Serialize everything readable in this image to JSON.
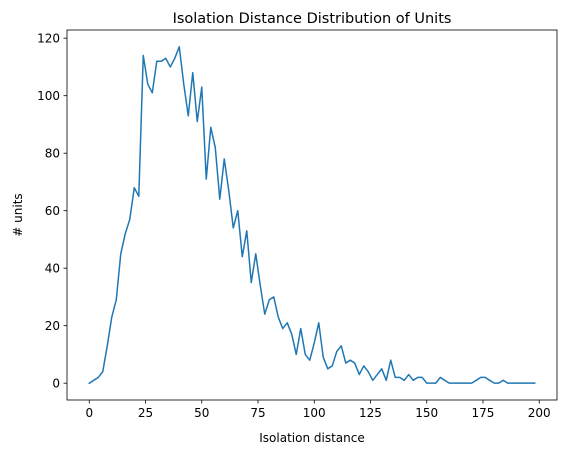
{
  "chart_data": {
    "type": "line",
    "title": "Isolation Distance Distribution of Units",
    "xlabel": "Isolation distance",
    "ylabel": "# units",
    "xlim": [
      -9.9,
      207.9
    ],
    "ylim": [
      -5.85,
      122.85
    ],
    "xticks": [
      0,
      25,
      50,
      75,
      100,
      125,
      150,
      175,
      200
    ],
    "yticks": [
      0,
      20,
      40,
      60,
      80,
      100,
      120
    ],
    "grid": false,
    "legend": "none",
    "line_color": "#1f77b4",
    "series": [
      {
        "x": [
          0,
          2,
          4,
          6,
          8,
          10,
          12,
          14,
          16,
          18,
          20,
          22,
          24,
          26,
          28,
          30,
          32,
          34,
          36,
          38,
          40,
          42,
          44,
          46,
          48,
          50,
          52,
          54,
          56,
          58,
          60,
          62,
          64,
          66,
          68,
          70,
          72,
          74,
          76,
          78,
          80,
          82,
          84,
          86,
          88,
          90,
          92,
          94,
          96,
          98,
          100,
          102,
          104,
          106,
          108,
          110,
          112,
          114,
          116,
          118,
          120,
          122,
          124,
          126,
          128,
          130,
          132,
          134,
          136,
          138,
          140,
          142,
          144,
          146,
          148,
          150,
          152,
          154,
          156,
          158,
          160,
          162,
          164,
          166,
          168,
          170,
          172,
          174,
          176,
          178,
          180,
          182,
          184,
          186,
          188,
          190,
          192,
          194,
          196,
          198
        ],
        "values": [
          0,
          1,
          2,
          4,
          13,
          23,
          29,
          45,
          52,
          57,
          68,
          65,
          114,
          104,
          101,
          112,
          112,
          113,
          110,
          113,
          117,
          104,
          93,
          108,
          91,
          103,
          71,
          89,
          82,
          64,
          78,
          67,
          54,
          60,
          44,
          53,
          35,
          45,
          34,
          24,
          29,
          30,
          23,
          19,
          21,
          17,
          10,
          19,
          10,
          8,
          14,
          21,
          9,
          5,
          6,
          11,
          13,
          7,
          8,
          7,
          3,
          6,
          4,
          1,
          3,
          5,
          1,
          8,
          2,
          2,
          1,
          3,
          1,
          2,
          2,
          0,
          0,
          0,
          2,
          1,
          0,
          0,
          0,
          0,
          0,
          0,
          1,
          2,
          2,
          1,
          0,
          0,
          1,
          0,
          0,
          0,
          0,
          0,
          0,
          0
        ]
      }
    ]
  }
}
